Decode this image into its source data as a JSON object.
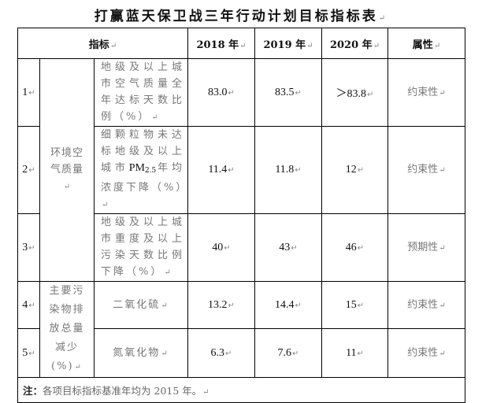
{
  "title": "打赢蓝天保卫战三年行动计划目标指标表",
  "header": {
    "indicator": "指标",
    "y2018": "2018 年",
    "y2019": "2019 年",
    "y2020": "2020 年",
    "attribute": "属性"
  },
  "groups": {
    "air": "环境空气质量",
    "pollutant": "主要污染物排放总量减少(%)"
  },
  "rows": [
    {
      "no": "1",
      "item": "地级及以上城市空气质量全年达标天数比例（%）",
      "v2018": "83.0",
      "v2019": "83.5",
      "v2020": "＞83.8",
      "attr": "约束性"
    },
    {
      "no": "2",
      "item_pre": "细颗粒物未达标地级及以上城市",
      "item_pm": "PM",
      "item_sub": "2.5",
      "item_post": "年均浓度下降（%）",
      "v2018": "11.4",
      "v2019": "11.8",
      "v2020": "12",
      "attr": "约束性"
    },
    {
      "no": "3",
      "item": "地级及以上城市重度及以上污染天数比例下降（%）",
      "v2018": "40",
      "v2019": "43",
      "v2020": "46",
      "attr": "预期性"
    },
    {
      "no": "4",
      "item": "二氧化硫",
      "v2018": "13.2",
      "v2019": "14.4",
      "v2020": "15",
      "attr": "约束性"
    },
    {
      "no": "5",
      "item": "氮氧化物",
      "v2018": "6.3",
      "v2019": "7.6",
      "v2020": "11",
      "attr": "约束性"
    }
  ],
  "note": {
    "label": "注：",
    "text": "各项目标指标基准年均为 2015 年。"
  }
}
